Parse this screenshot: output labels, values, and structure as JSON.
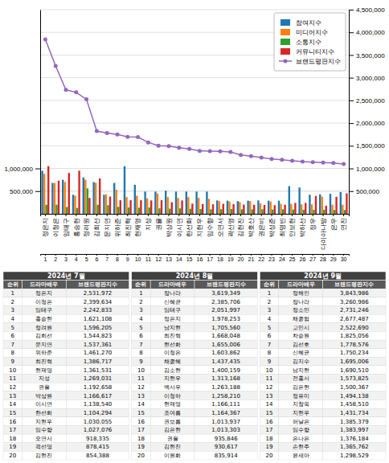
{
  "chart_data": [
    {
      "type": "bar",
      "categories": [
        "정은지",
        "이청은",
        "임태구",
        "홍승현",
        "정려원",
        "김희선",
        "문지연",
        "위하준",
        "최진혁",
        "현재영",
        "지성",
        "권율",
        "박상원",
        "이시연",
        "한선화",
        "지현우",
        "임수향",
        "오연서",
        "곽선영",
        "김현진",
        "박호산",
        "권은비",
        "박성준",
        "최명빈",
        "안보현",
        "박하선",
        "정우",
        "다이아나방",
        "은우",
        "연진"
      ],
      "x2ticks": [
        1,
        2,
        3,
        4,
        5,
        6,
        7,
        8,
        9,
        10,
        11,
        12,
        13,
        14,
        15,
        16,
        17,
        18,
        19,
        20,
        21,
        22,
        23,
        24,
        25,
        26,
        27,
        28,
        29,
        30
      ],
      "series": [
        {
          "name": "참여지수",
          "values": [
            950000,
            680000,
            750000,
            420000,
            800000,
            700000,
            420000,
            680000,
            1050000,
            640000,
            490000,
            490000,
            510000,
            490000,
            490000,
            490000,
            490000,
            295000,
            290000,
            280000,
            290000,
            295000,
            290000,
            290000,
            610000,
            580000,
            420000,
            430000,
            440000,
            480000
          ]
        },
        {
          "name": "미디어지수",
          "values": [
            880000,
            680000,
            700000,
            400000,
            750000,
            680000,
            430000,
            530000,
            370000,
            400000,
            340000,
            450000,
            370000,
            350000,
            370000,
            350000,
            330000,
            280000,
            270000,
            260000,
            280000,
            230000,
            270000,
            220000,
            220000,
            210000,
            210000,
            380000,
            200000,
            200000
          ]
        },
        {
          "name": "소통지수",
          "values": [
            200000,
            200000,
            150000,
            130000,
            560000,
            200000,
            190000,
            155000,
            140000,
            135000,
            140000,
            120000,
            115000,
            120000,
            113000,
            105000,
            100000,
            103000,
            105000,
            100000,
            100000,
            100000,
            95000,
            100000,
            95000,
            90000,
            90000,
            90000,
            85000,
            85000
          ]
        },
        {
          "name": "커뮤니티지수",
          "values": [
            1050000,
            730000,
            900000,
            950000,
            350000,
            780000,
            380000,
            300000,
            300000,
            300000,
            295000,
            300000,
            255000,
            295000,
            225000,
            215000,
            210000,
            220000,
            215000,
            205000,
            200000,
            195000,
            190000,
            200000,
            240000,
            240000,
            395000,
            180000,
            375000,
            450000
          ]
        },
        {
          "name": "브랜드평판지수",
          "type": "line",
          "marker": "circle",
          "axis": "y2",
          "values": [
            3843986,
            3260986,
            2731246,
            2677487,
            2522690,
            1825056,
            1778576,
            1750234,
            1695006,
            1690510,
            1573825,
            1500367,
            1494138,
            1458510,
            1431734,
            1385379,
            1383997,
            1376184,
            1365762,
            1298529,
            1270000,
            1240000,
            1210000,
            1190000,
            1170000,
            1150000,
            1140000,
            1130000,
            1120000,
            1100000
          ]
        }
      ],
      "ylim": [
        0,
        4500000
      ],
      "yticks": [
        {
          "value": 500000,
          "label": "500,000"
        },
        {
          "value": 1000000,
          "label": "1,000,000"
        }
      ],
      "y2lim": [
        0,
        4500000
      ],
      "y2ticks": [
        {
          "value": 500000,
          "label": "500,000"
        },
        {
          "value": 1000000,
          "label": "1,000,000"
        },
        {
          "value": 1500000,
          "label": "1,500,000"
        },
        {
          "value": 2000000,
          "label": "2,000,000"
        },
        {
          "value": 2500000,
          "label": "2,500,000"
        },
        {
          "value": 3000000,
          "label": "3,000,000"
        },
        {
          "value": 3500000,
          "label": "3,500,000"
        },
        {
          "value": 4000000,
          "label": "4,000,000"
        },
        {
          "value": 4500000,
          "label": "4,500,000"
        }
      ],
      "grid": true,
      "legend": "upper right"
    },
    {
      "type": "table",
      "title": "2024년 7월",
      "columns": [
        "순위",
        "드라마배우",
        "브랜드평판지수"
      ],
      "rows": [
        [
          1,
          "정은지",
          "2,531,972"
        ],
        [
          2,
          "이청은",
          "2,399,634"
        ],
        [
          3,
          "임태구",
          "2,242,833"
        ],
        [
          4,
          "홍승현",
          "1,621,108"
        ],
        [
          5,
          "정려원",
          "1,596,205"
        ],
        [
          6,
          "김희선",
          "1,544,823"
        ],
        [
          7,
          "문지연",
          "1,537,361"
        ],
        [
          8,
          "위하준",
          "1,461,270"
        ],
        [
          9,
          "최진혁",
          "1,386,717"
        ],
        [
          10,
          "현재영",
          "1,361,531"
        ],
        [
          11,
          "지성",
          "1,269,031"
        ],
        [
          12,
          "권율",
          "1,192,658"
        ],
        [
          13,
          "박상원",
          "1,166,617"
        ],
        [
          14,
          "이시연",
          "1,138,540"
        ],
        [
          15,
          "한선화",
          "1,104,294"
        ],
        [
          16,
          "지현우",
          "1,030,055"
        ],
        [
          17,
          "임수향",
          "1,027,076"
        ],
        [
          18,
          "오연서",
          "918,335"
        ],
        [
          19,
          "곽선영",
          "878,415"
        ],
        [
          20,
          "김현진",
          "854,388"
        ]
      ]
    },
    {
      "type": "table",
      "title": "2024년 8월",
      "columns": [
        "순위",
        "드라마배우",
        "브랜드평판지수"
      ],
      "rows": [
        [
          1,
          "장나라",
          "3,619,349"
        ],
        [
          2,
          "신혜균",
          "2,385,706"
        ],
        [
          3,
          "임태구",
          "2,051,997"
        ],
        [
          4,
          "정은지",
          "1,978,253"
        ],
        [
          5,
          "남지현",
          "1,705,560"
        ],
        [
          6,
          "최진혁",
          "1,668,048"
        ],
        [
          7,
          "현선화",
          "1,655,006"
        ],
        [
          8,
          "이청은",
          "1,603,862"
        ],
        [
          9,
          "채종혜",
          "1,437,435"
        ],
        [
          10,
          "김소현",
          "1,400,159"
        ],
        [
          11,
          "지현우",
          "1,313,168"
        ],
        [
          12,
          "백서우",
          "1,263,188"
        ],
        [
          13,
          "이청하",
          "1,258,210"
        ],
        [
          14,
          "현재영",
          "1,166,111"
        ],
        [
          15,
          "조여름",
          "1,164,367"
        ],
        [
          16,
          "권보름",
          "1,013,937"
        ],
        [
          17,
          "김은현",
          "1,013,303"
        ],
        [
          18,
          "권율",
          "935,846"
        ],
        [
          19,
          "김현진",
          "930,617"
        ],
        [
          20,
          "이원화",
          "835,914"
        ]
      ]
    },
    {
      "type": "table",
      "title": "2024년 9월",
      "columns": [
        "순위",
        "드라마배우",
        "브랜드평판지수"
      ],
      "rows": [
        [
          1,
          "정해인",
          "3,843,986"
        ],
        [
          2,
          "장나라",
          "3,260,986"
        ],
        [
          3,
          "정소민",
          "2,731,246"
        ],
        [
          4,
          "채종협",
          "2,677,487"
        ],
        [
          5,
          "고민시",
          "2,522,690"
        ],
        [
          6,
          "차승원",
          "1,825,056"
        ],
        [
          7,
          "김선호",
          "1,778,576"
        ],
        [
          8,
          "신혜균",
          "1,750,234"
        ],
        [
          9,
          "김지수",
          "1,695,006"
        ],
        [
          10,
          "남지현",
          "1,690,510"
        ],
        [
          11,
          "전홍서",
          "1,573,825"
        ],
        [
          12,
          "김은현",
          "1,500,367"
        ],
        [
          13,
          "정유미",
          "1,494,138"
        ],
        [
          14,
          "지창욱",
          "1,458,510"
        ],
        [
          15,
          "지현우",
          "1,431,734"
        ],
        [
          16,
          "허날은",
          "1,385,379"
        ],
        [
          17,
          "임수향",
          "1,383,997"
        ],
        [
          18,
          "은나은",
          "1,376,184"
        ],
        [
          19,
          "손현주",
          "1,365,762"
        ],
        [
          20,
          "윤세아",
          "1,298,529"
        ]
      ]
    }
  ]
}
